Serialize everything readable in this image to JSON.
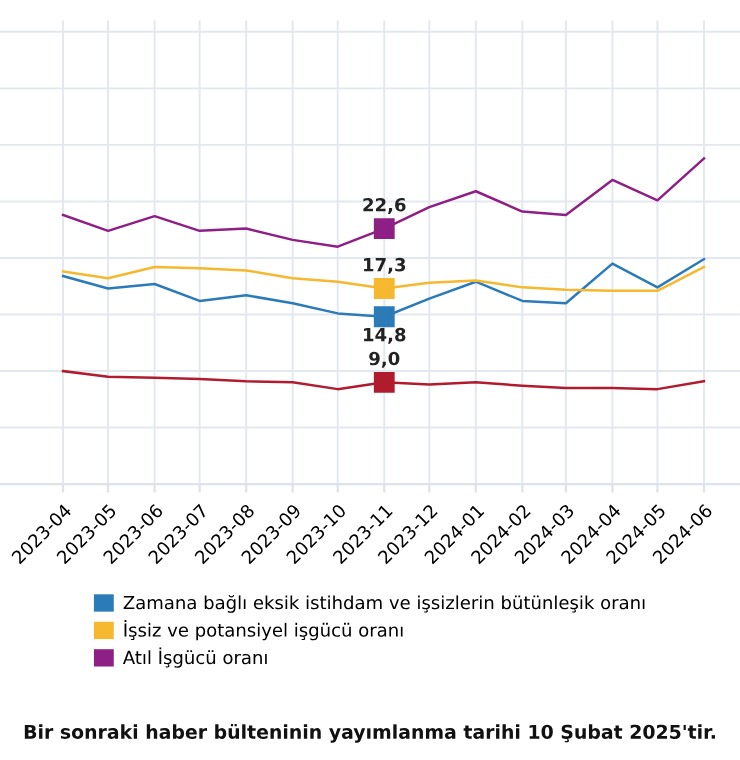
{
  "chart_data": {
    "type": "line",
    "x": [
      "2023-04",
      "2023-05",
      "2023-06",
      "2023-07",
      "2023-08",
      "2023-09",
      "2023-10",
      "2023-11",
      "2023-12",
      "2024-01",
      "2024-02",
      "2024-03",
      "2024-04",
      "2024-05",
      "2024-06"
    ],
    "series": [
      {
        "name": "Zamana bağlı eksik istihdam ve işsizlerin bütünleşik oranı",
        "color": "#2b7bb9",
        "values": [
          18.4,
          17.3,
          17.7,
          16.2,
          16.7,
          16.0,
          15.1,
          14.8,
          16.4,
          17.9,
          16.2,
          16.0,
          19.5,
          17.4,
          19.9
        ],
        "value_labels": [
          null,
          null,
          null,
          null,
          null,
          null,
          null,
          "14,8",
          null,
          null,
          null,
          null,
          null,
          null,
          null
        ]
      },
      {
        "name": "İşsiz ve potansiyel işgücü oranı",
        "color": "#f5b82e",
        "values": [
          18.8,
          18.2,
          19.2,
          19.1,
          18.9,
          18.2,
          17.9,
          17.3,
          17.8,
          18.0,
          17.4,
          17.2,
          17.1,
          17.1,
          19.2
        ],
        "value_labels": [
          null,
          null,
          null,
          null,
          null,
          null,
          null,
          "17,3",
          null,
          null,
          null,
          null,
          null,
          null,
          null
        ]
      },
      {
        "name": "Atıl İşgücü oranı",
        "color": "#8e1f85",
        "values": [
          23.8,
          22.4,
          23.7,
          22.4,
          22.6,
          21.6,
          21.0,
          22.6,
          24.5,
          25.9,
          24.1,
          23.8,
          26.9,
          25.1,
          28.8
        ],
        "value_labels": [
          null,
          null,
          null,
          null,
          null,
          null,
          null,
          "22,6",
          null,
          null,
          null,
          null,
          null,
          null,
          null
        ]
      },
      {
        "color": "#b01c2e",
        "values": [
          10.0,
          9.5,
          9.4,
          9.3,
          9.1,
          9.0,
          8.4,
          9.0,
          8.8,
          9.0,
          8.7,
          8.5,
          8.5,
          8.4,
          9.1
        ],
        "value_labels": [
          null,
          null,
          null,
          null,
          null,
          null,
          null,
          "9,0",
          null,
          null,
          null,
          null,
          null,
          null,
          null
        ]
      }
    ],
    "xlim": [
      "2023-02-18",
      "2024-06-25"
    ],
    "xticks": [
      "2023-04",
      "2023-05",
      "2023-06",
      "2023-07",
      "2023-08",
      "2023-09",
      "2023-10",
      "2023-11",
      "2023-12",
      "2024-01",
      "2024-02",
      "2024-03",
      "2024-04",
      "2024-05",
      "2024-06"
    ],
    "ylim": [
      0,
      41
    ],
    "yticks": [
      {
        "value": 0,
        "label": null
      },
      {
        "value": 5,
        "label": null
      },
      {
        "value": 10,
        "label": null
      },
      {
        "value": 15,
        "label": null
      },
      {
        "value": 20,
        "label": null
      },
      {
        "value": 25,
        "label": null
      },
      {
        "value": 30,
        "label": null
      },
      {
        "value": 35,
        "label": null
      },
      {
        "value": 40,
        "label": null
      }
    ],
    "tick_labels": "x",
    "grid": true,
    "legend": "bottom",
    "annotations": [
      "Bir sonraki haber bülteninin yayımlanma tarihi 10 Şubat 2025'tir."
    ]
  }
}
